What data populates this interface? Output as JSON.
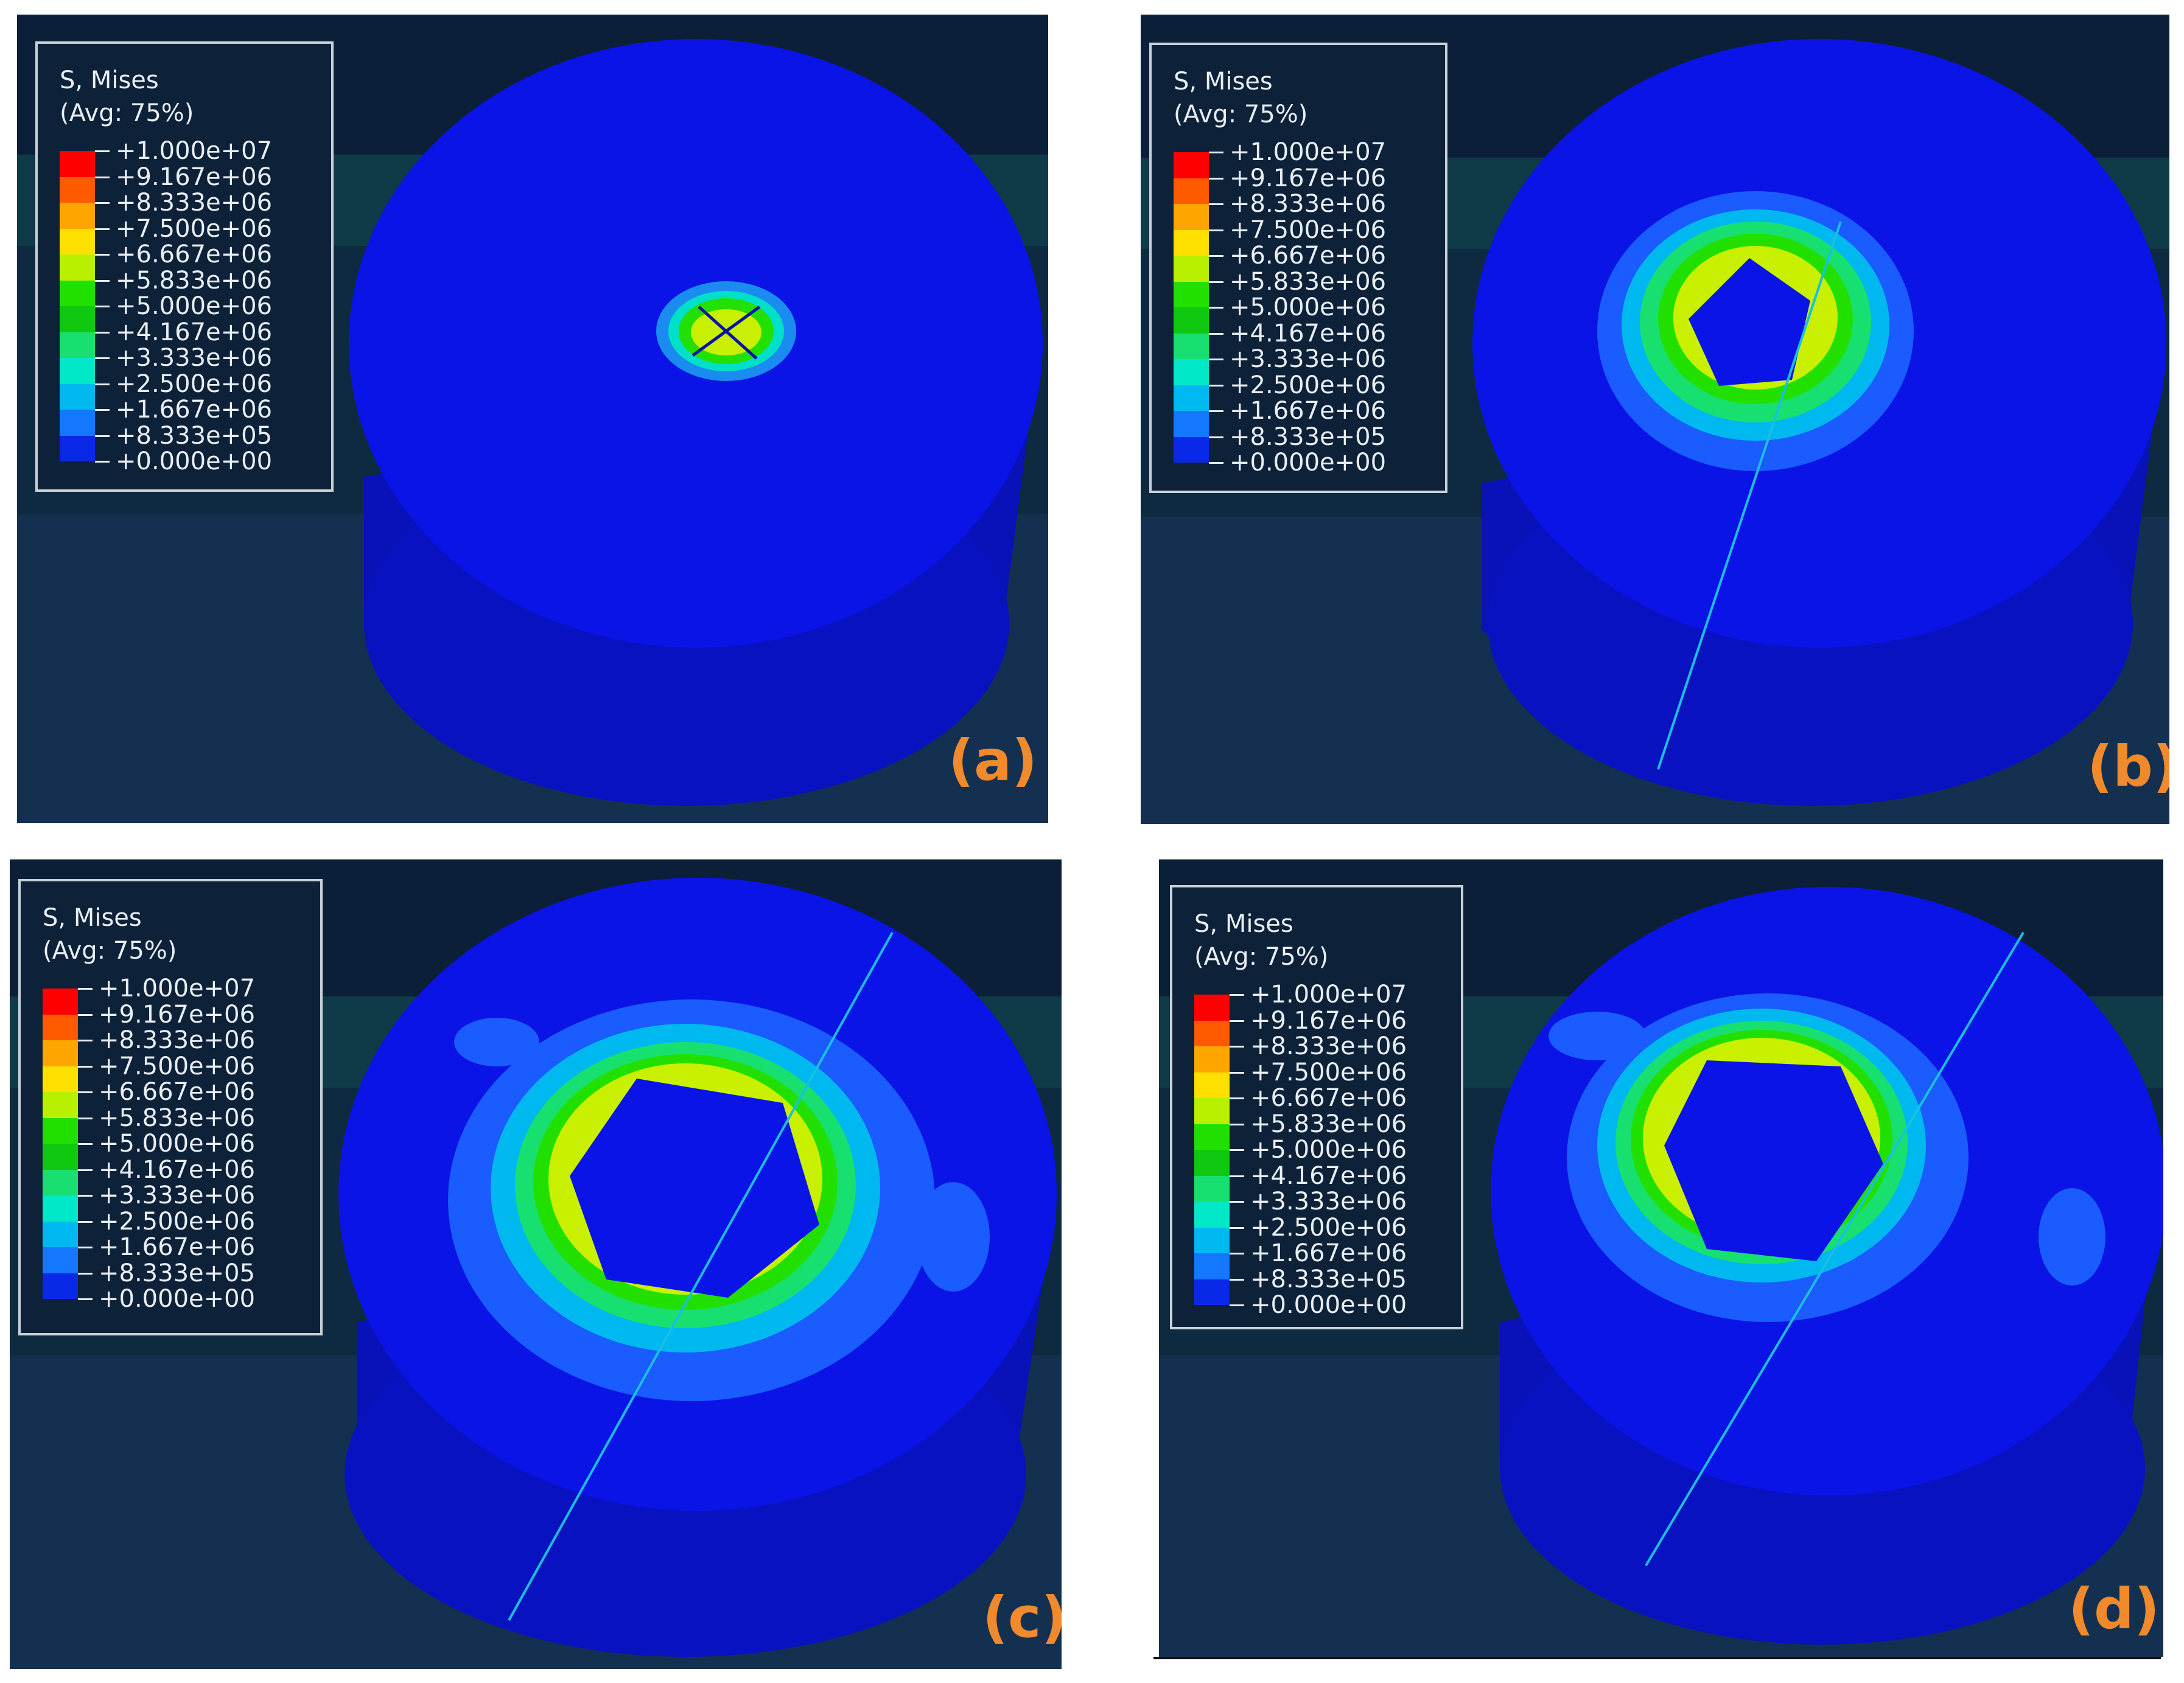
{
  "legend": {
    "title_line1": "S, Mises",
    "title_line2": "(Avg: 75%)",
    "ticks": [
      "+1.000e+07",
      "+9.167e+06",
      "+8.333e+06",
      "+7.500e+06",
      "+6.667e+06",
      "+5.833e+06",
      "+5.000e+06",
      "+4.167e+06",
      "+3.333e+06",
      "+2.500e+06",
      "+1.667e+06",
      "+8.333e+05",
      "+0.000e+00"
    ],
    "band_colors": [
      "#ff0000",
      "#ff5a00",
      "#ffa500",
      "#ffe000",
      "#b8f000",
      "#21e000",
      "#10c810",
      "#18e070",
      "#00e8c8",
      "#00b8f0",
      "#1478ff",
      "#0a28e8"
    ]
  },
  "panels": [
    {
      "label": "(a)"
    },
    {
      "label": "(b)"
    },
    {
      "label": "(c)"
    },
    {
      "label": "(d)"
    }
  ],
  "colors": {
    "background_top": "#0c1f38",
    "background_band": "#0f3a48",
    "background_bottom": "#143050",
    "body_blue": "#0a14e6",
    "side_blue": "#0812b8",
    "label_orange": "#f08a2c"
  }
}
